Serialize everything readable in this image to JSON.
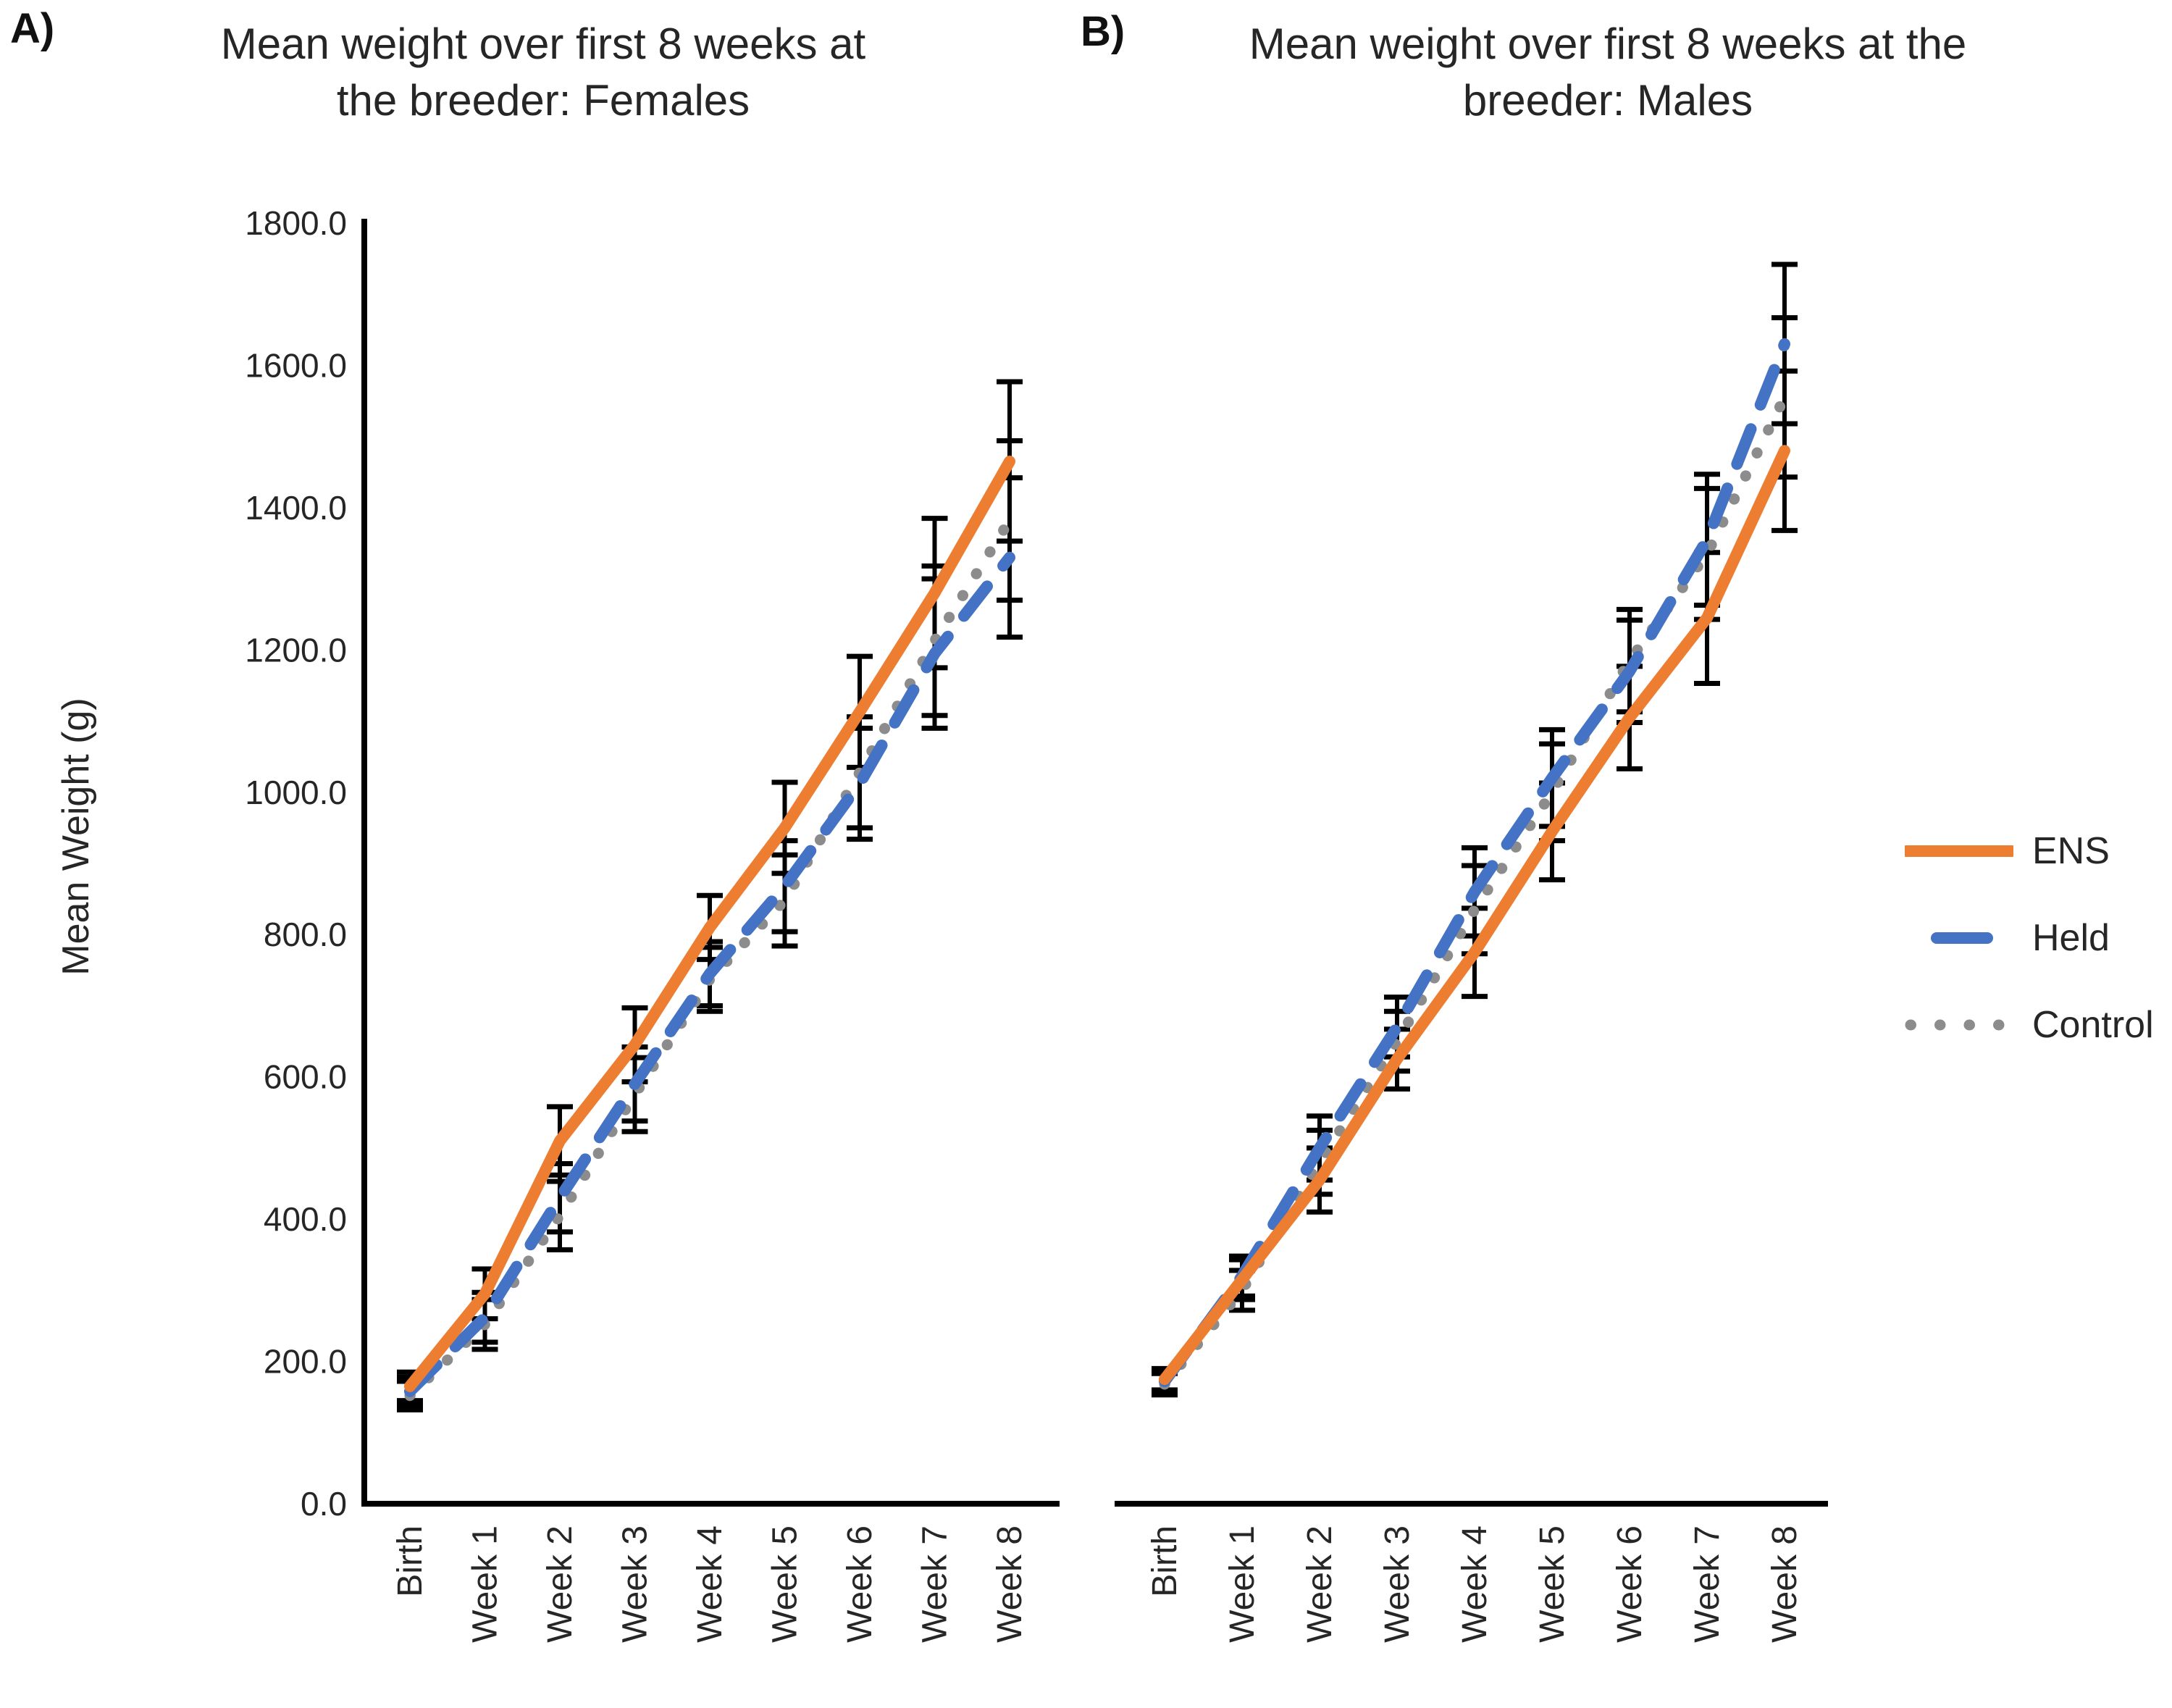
{
  "figure": {
    "panels": [
      {
        "label": "A)",
        "title_line1": "Mean weight over first 8 weeks at",
        "title_line2": "the breeder: Females"
      },
      {
        "label": "B)",
        "title_line1": "Mean weight over first 8 weeks at the",
        "title_line2": "breeder: Males"
      }
    ],
    "legend": {
      "position": "right",
      "items": [
        "ENS",
        "Held",
        "Control"
      ]
    }
  },
  "chart_data": [
    {
      "type": "line",
      "title": "Mean weight over first 8 weeks at the breeder: Females",
      "categories": [
        "Birth",
        "Week 1",
        "Week 2",
        "Week 3",
        "Week 4",
        "Week 5",
        "Week 6",
        "Week 7",
        "Week 8"
      ],
      "xlabel": "",
      "ylabel": "Mean Weight (g)",
      "ylim": [
        0,
        1800
      ],
      "ytick_step": 200,
      "ytick_decimals": 1,
      "grid": false,
      "error_bars": true,
      "series": [
        {
          "name": "ENS",
          "style": "solid",
          "color": "#ED7D31",
          "values": [
            165,
            295,
            510,
            645,
            810,
            950,
            1113,
            1280,
            1465
          ],
          "errors": [
            20,
            35,
            48,
            52,
            45,
            64,
            78,
            105,
            112
          ]
        },
        {
          "name": "Held",
          "style": "dashed",
          "color": "#4472C4",
          "values": [
            158,
            262,
            430,
            590,
            745,
            868,
            1012,
            1195,
            1330
          ],
          "errors": [
            20,
            35,
            48,
            52,
            45,
            64,
            78,
            105,
            112
          ]
        },
        {
          "name": "Control",
          "style": "dotted",
          "color": "#8C8C8C",
          "values": [
            152,
            252,
            405,
            575,
            737,
            848,
            1028,
            1213,
            1382
          ],
          "errors": [
            20,
            35,
            48,
            52,
            45,
            64,
            78,
            105,
            112
          ]
        }
      ]
    },
    {
      "type": "line",
      "title": "Mean weight over first 8 weeks at the breeder: Males",
      "categories": [
        "Birth",
        "Week 1",
        "Week 2",
        "Week 3",
        "Week 4",
        "Week 5",
        "Week 6",
        "Week 7",
        "Week 8"
      ],
      "xlabel": "",
      "ylabel": "Mean Weight (g)",
      "ylim": [
        0,
        1800
      ],
      "ytick_step": 200,
      "ytick_decimals": 1,
      "grid": false,
      "error_bars": true,
      "series": [
        {
          "name": "ENS",
          "style": "solid",
          "color": "#ED7D31",
          "values": [
            175,
            315,
            455,
            625,
            775,
            945,
            1105,
            1245,
            1480
          ],
          "errors": [
            15,
            28,
            45,
            42,
            62,
            68,
            72,
            92,
            112
          ]
        },
        {
          "name": "Held",
          "style": "dashed",
          "color": "#4472C4",
          "values": [
            172,
            320,
            500,
            670,
            860,
            1020,
            1170,
            1355,
            1630
          ],
          "errors": [
            15,
            28,
            45,
            42,
            62,
            68,
            72,
            92,
            112
          ]
        },
        {
          "name": "Control",
          "style": "dotted",
          "color": "#8C8C8C",
          "values": [
            168,
            300,
            480,
            650,
            835,
            1000,
            1185,
            1335,
            1555
          ],
          "errors": [
            15,
            28,
            45,
            42,
            62,
            68,
            72,
            92,
            112
          ]
        }
      ]
    }
  ]
}
